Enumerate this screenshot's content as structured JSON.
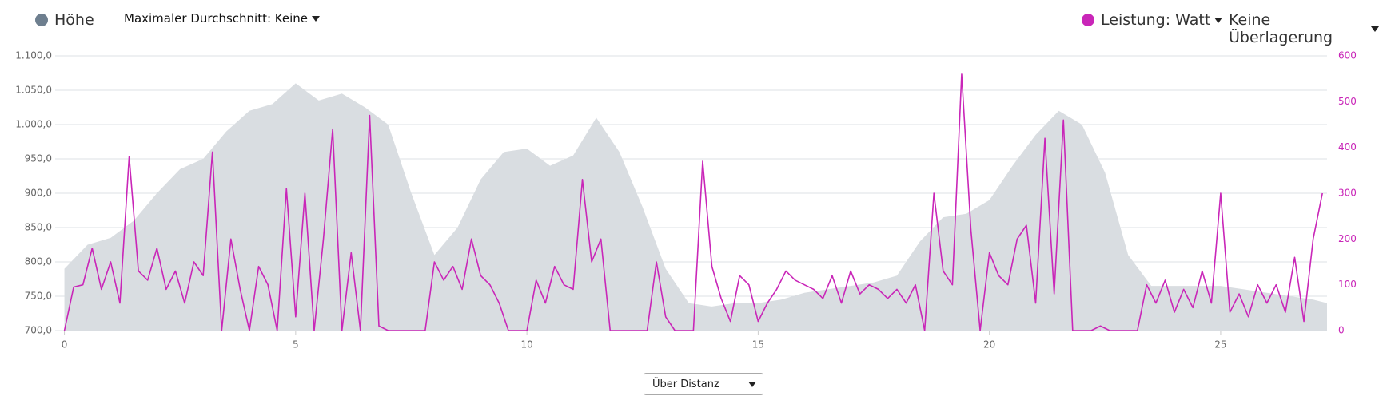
{
  "controls": {
    "average": "Maximaler Durchschnitt: Keine",
    "overlay": "Keine Überlagerung",
    "xmode": "Über Distanz"
  },
  "chart_data": {
    "type": "line",
    "xlim": [
      -0.2,
      27.3
    ],
    "xticks": [
      0,
      5,
      10,
      15,
      20,
      25
    ],
    "ylim": [
      700,
      1100
    ],
    "yticks": [
      {
        "value": 700,
        "label": "700,0"
      },
      {
        "value": 750,
        "label": "750,0"
      },
      {
        "value": 800,
        "label": "800,0"
      },
      {
        "value": 850,
        "label": "850,0"
      },
      {
        "value": 900,
        "label": "900,0"
      },
      {
        "value": 950,
        "label": "950,0"
      },
      {
        "value": 1000,
        "label": "1.000,0"
      },
      {
        "value": 1050,
        "label": "1.050,0"
      },
      {
        "value": 1100,
        "label": "1.100,0"
      }
    ],
    "y2lim": [
      0,
      600
    ],
    "y2ticks": [
      0,
      100,
      200,
      300,
      400,
      500,
      600
    ],
    "grid": true,
    "series": [
      {
        "name": "Höhe",
        "type": "area",
        "color": "#6e7f8f",
        "fill": "#d9dde1",
        "x": [
          0,
          0.5,
          1,
          1.5,
          2,
          2.5,
          3,
          3.5,
          4,
          4.5,
          5,
          5.5,
          6,
          6.5,
          7,
          7.5,
          8,
          8.5,
          9,
          9.5,
          10,
          10.5,
          11,
          11.5,
          12,
          12.5,
          13,
          13.5,
          14,
          14.5,
          15,
          15.5,
          16,
          16.5,
          17,
          17.5,
          18,
          18.5,
          19,
          19.5,
          20,
          20.5,
          21,
          21.5,
          22,
          22.5,
          23,
          23.5,
          24,
          24.5,
          25,
          25.5,
          26,
          26.5,
          27,
          27.3
        ],
        "values": [
          790,
          825,
          835,
          860,
          900,
          935,
          950,
          990,
          1020,
          1030,
          1060,
          1035,
          1045,
          1025,
          1000,
          900,
          810,
          850,
          920,
          960,
          965,
          940,
          955,
          1010,
          960,
          880,
          790,
          740,
          735,
          740,
          740,
          745,
          755,
          760,
          765,
          770,
          780,
          830,
          865,
          870,
          890,
          940,
          985,
          1020,
          1000,
          930,
          810,
          765,
          765,
          765,
          765,
          760,
          755,
          750,
          745,
          740
        ]
      },
      {
        "name": "Leistung: Watt",
        "type": "line",
        "axis": "y2",
        "color": "#c926b8",
        "x": [
          0,
          0.2,
          0.4,
          0.6,
          0.8,
          1,
          1.2,
          1.4,
          1.6,
          1.8,
          2,
          2.2,
          2.4,
          2.6,
          2.8,
          3,
          3.2,
          3.4,
          3.6,
          3.8,
          4,
          4.2,
          4.4,
          4.6,
          4.8,
          5,
          5.2,
          5.4,
          5.6,
          5.8,
          6,
          6.2,
          6.4,
          6.6,
          6.8,
          7,
          7.2,
          7.4,
          7.6,
          7.8,
          8,
          8.2,
          8.4,
          8.6,
          8.8,
          9,
          9.2,
          9.4,
          9.6,
          9.8,
          10,
          10.2,
          10.4,
          10.6,
          10.8,
          11,
          11.2,
          11.4,
          11.6,
          11.8,
          12,
          12.2,
          12.4,
          12.6,
          12.8,
          13,
          13.2,
          13.4,
          13.6,
          13.8,
          14,
          14.2,
          14.4,
          14.6,
          14.8,
          15,
          15.2,
          15.4,
          15.6,
          15.8,
          16,
          16.2,
          16.4,
          16.6,
          16.8,
          17,
          17.2,
          17.4,
          17.6,
          17.8,
          18,
          18.2,
          18.4,
          18.6,
          18.8,
          19,
          19.2,
          19.4,
          19.6,
          19.8,
          20,
          20.2,
          20.4,
          20.6,
          20.8,
          21,
          21.2,
          21.4,
          21.6,
          21.8,
          22,
          22.2,
          22.4,
          22.6,
          22.8,
          23,
          23.2,
          23.4,
          23.6,
          23.8,
          24,
          24.2,
          24.4,
          24.6,
          24.8,
          25,
          25.2,
          25.4,
          25.6,
          25.8,
          26,
          26.2,
          26.4,
          26.6,
          26.8,
          27,
          27.2
        ],
        "values": [
          0,
          95,
          100,
          180,
          90,
          150,
          60,
          380,
          130,
          110,
          180,
          90,
          130,
          60,
          150,
          120,
          390,
          0,
          200,
          90,
          0,
          140,
          100,
          0,
          310,
          30,
          300,
          0,
          200,
          440,
          0,
          170,
          0,
          470,
          10,
          0,
          0,
          0,
          0,
          0,
          150,
          110,
          140,
          90,
          200,
          120,
          100,
          60,
          0,
          0,
          0,
          110,
          60,
          140,
          100,
          90,
          330,
          150,
          200,
          0,
          0,
          0,
          0,
          0,
          150,
          30,
          0,
          0,
          0,
          370,
          140,
          70,
          20,
          120,
          100,
          20,
          60,
          90,
          130,
          110,
          100,
          90,
          70,
          120,
          60,
          130,
          80,
          100,
          90,
          70,
          90,
          60,
          100,
          0,
          300,
          130,
          100,
          560,
          220,
          0,
          170,
          120,
          100,
          200,
          230,
          60,
          420,
          80,
          460,
          0,
          0,
          0,
          10,
          0,
          0,
          0,
          0,
          100,
          60,
          110,
          40,
          90,
          50,
          130,
          60,
          300,
          40,
          80,
          30,
          100,
          60,
          100,
          40,
          160,
          20,
          200,
          300
        ]
      }
    ]
  }
}
